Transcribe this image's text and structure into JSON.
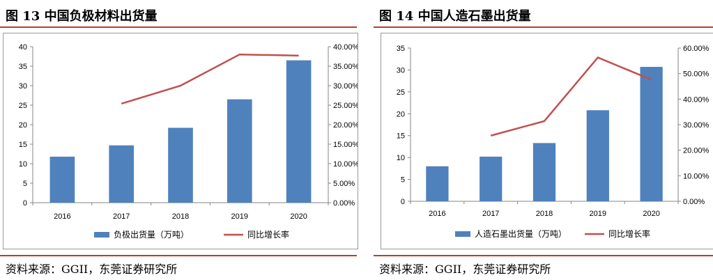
{
  "figures": [
    {
      "title": "图 13 中国负极材料出货量",
      "source": "资料来源：GGII，东莞证券研究所",
      "chart_data": {
        "type": "bar",
        "title": "",
        "categories": [
          "2016",
          "2017",
          "2018",
          "2019",
          "2020"
        ],
        "series": [
          {
            "name": "负极出货量（万吨）",
            "kind": "bar",
            "axis": "left",
            "color": "#4F81BD",
            "values": [
              11.8,
              14.7,
              19.2,
              26.5,
              36.5
            ]
          },
          {
            "name": "同比增长率",
            "kind": "line",
            "axis": "right",
            "color": "#C0504D",
            "values": [
              null,
              0.254,
              0.3,
              0.38,
              0.377
            ]
          }
        ],
        "ylim": [
          0,
          40
        ],
        "yticks": [
          "0",
          "5",
          "10",
          "15",
          "20",
          "25",
          "30",
          "35",
          "40"
        ],
        "y2lim": [
          0,
          0.4
        ],
        "y2ticks": [
          "0.00%",
          "5.00%",
          "10.00%",
          "15.00%",
          "20.00%",
          "25.00%",
          "30.00%",
          "35.00%",
          "40.00%"
        ],
        "legend": "bottom",
        "grid": false
      }
    },
    {
      "title": "图 14 中国人造石墨出货量",
      "source": "资料来源：GGII，东莞证券研究所",
      "chart_data": {
        "type": "bar",
        "title": "",
        "categories": [
          "2016",
          "2017",
          "2018",
          "2019",
          "2020"
        ],
        "series": [
          {
            "name": "人造石墨出货量（万吨）",
            "kind": "bar",
            "axis": "left",
            "color": "#4F81BD",
            "values": [
              8.0,
              10.2,
              13.3,
              20.8,
              30.7
            ]
          },
          {
            "name": "同比增长率",
            "kind": "line",
            "axis": "right",
            "color": "#C0504D",
            "values": [
              null,
              0.257,
              0.314,
              0.563,
              0.476
            ]
          }
        ],
        "ylim": [
          0,
          35
        ],
        "yticks": [
          "0",
          "5",
          "10",
          "15",
          "20",
          "25",
          "30",
          "35"
        ],
        "y2lim": [
          0,
          0.6
        ],
        "y2ticks": [
          "0.00%",
          "10.00%",
          "20.00%",
          "30.00%",
          "40.00%",
          "50.00%",
          "60.00%"
        ],
        "legend": "bottom",
        "grid": false
      }
    }
  ]
}
